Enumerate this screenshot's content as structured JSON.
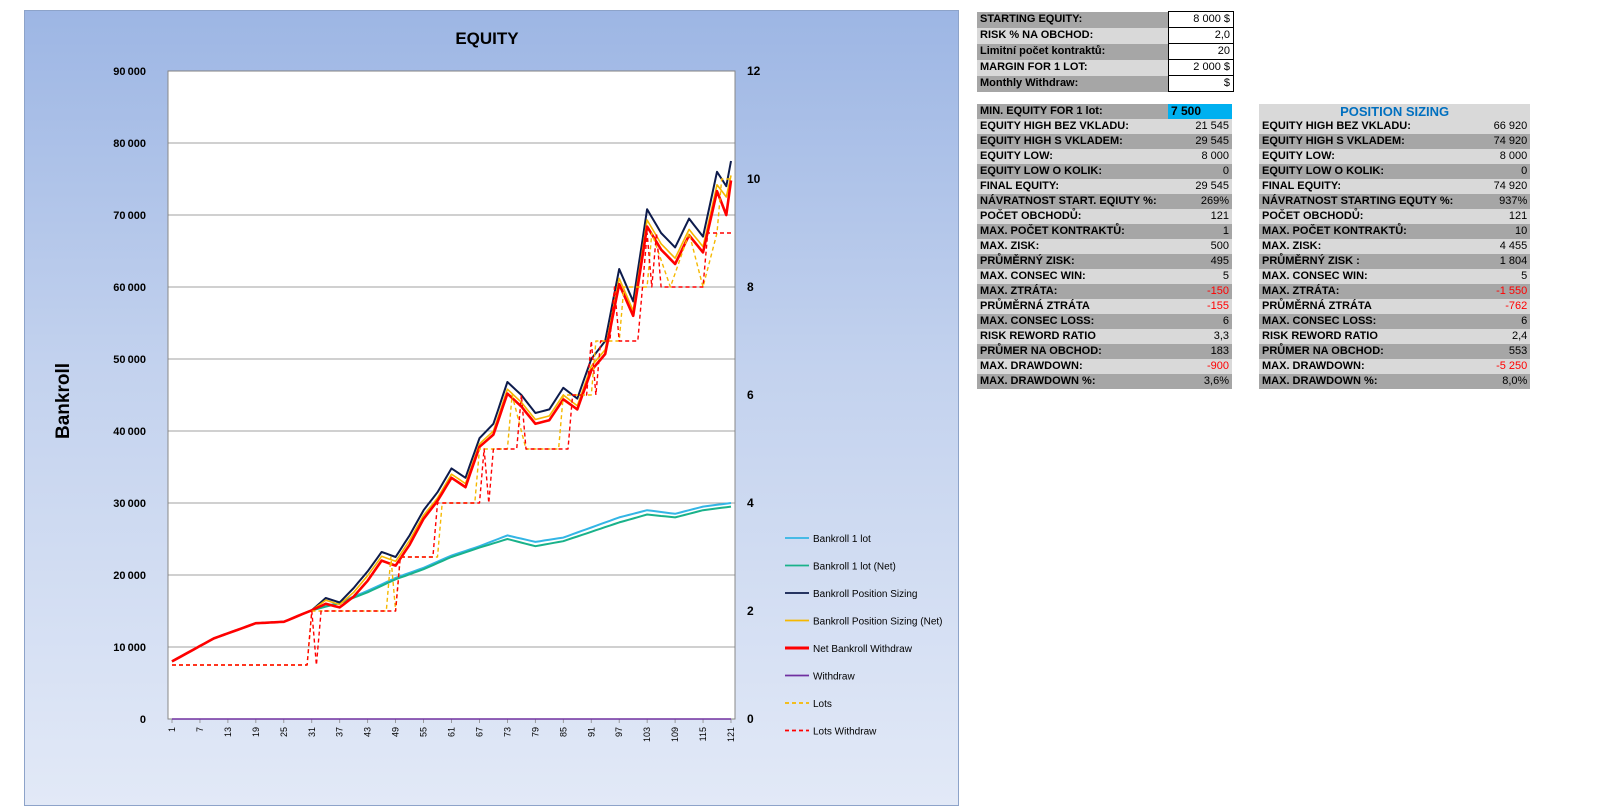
{
  "chart_data": {
    "type": "line",
    "title": "EQUITY",
    "ylabel": "Bankroll",
    "ylim": [
      0,
      90000
    ],
    "y2lim": [
      0,
      12
    ],
    "yticks": [
      "0",
      "10000",
      "20000",
      "30000",
      "40000",
      "50000",
      "60000",
      "70000",
      "80000",
      "90000"
    ],
    "y2ticks": [
      "0",
      "2",
      "4",
      "6",
      "8",
      "10",
      "12"
    ],
    "xticks": [
      "1",
      "7",
      "13",
      "19",
      "25",
      "31",
      "37",
      "43",
      "49",
      "55",
      "61",
      "67",
      "73",
      "79",
      "85",
      "91",
      "97",
      "103",
      "109",
      "115",
      "121"
    ],
    "n_points": 121,
    "grid": true,
    "legend_position": "right",
    "series": [
      {
        "name": "Bankroll 1 lot",
        "color": "#33b5e5",
        "dash": false,
        "axis": "left",
        "keypoints": [
          [
            1,
            8000
          ],
          [
            10,
            11200
          ],
          [
            19,
            13300
          ],
          [
            25,
            13500
          ],
          [
            31,
            15100
          ],
          [
            37,
            16200
          ],
          [
            43,
            17800
          ],
          [
            49,
            19600
          ],
          [
            55,
            21000
          ],
          [
            61,
            22700
          ],
          [
            67,
            24000
          ],
          [
            73,
            25500
          ],
          [
            79,
            24600
          ],
          [
            85,
            25200
          ],
          [
            91,
            26600
          ],
          [
            97,
            28000
          ],
          [
            103,
            29000
          ],
          [
            109,
            28500
          ],
          [
            115,
            29500
          ],
          [
            121,
            30000
          ]
        ]
      },
      {
        "name": "Bankroll 1 lot (Net)",
        "color": "#19b28a",
        "dash": false,
        "axis": "left",
        "keypoints": [
          [
            1,
            8000
          ],
          [
            10,
            11200
          ],
          [
            19,
            13300
          ],
          [
            25,
            13500
          ],
          [
            31,
            15100
          ],
          [
            37,
            16100
          ],
          [
            43,
            17600
          ],
          [
            49,
            19400
          ],
          [
            55,
            20800
          ],
          [
            61,
            22500
          ],
          [
            67,
            23800
          ],
          [
            73,
            25000
          ],
          [
            79,
            24000
          ],
          [
            85,
            24700
          ],
          [
            91,
            26000
          ],
          [
            97,
            27300
          ],
          [
            103,
            28400
          ],
          [
            109,
            28000
          ],
          [
            115,
            29000
          ],
          [
            121,
            29500
          ]
        ]
      },
      {
        "name": "Bankroll Position Sizing",
        "color": "#0d1b4c",
        "dash": false,
        "axis": "left",
        "keypoints": [
          [
            1,
            8000
          ],
          [
            10,
            11200
          ],
          [
            19,
            13300
          ],
          [
            25,
            13500
          ],
          [
            31,
            15100
          ],
          [
            34,
            16800
          ],
          [
            37,
            16200
          ],
          [
            40,
            18200
          ],
          [
            43,
            20500
          ],
          [
            46,
            23200
          ],
          [
            49,
            22500
          ],
          [
            52,
            25500
          ],
          [
            55,
            29000
          ],
          [
            58,
            31500
          ],
          [
            61,
            34800
          ],
          [
            64,
            33500
          ],
          [
            67,
            39000
          ],
          [
            70,
            41000
          ],
          [
            73,
            46800
          ],
          [
            76,
            45000
          ],
          [
            79,
            42500
          ],
          [
            82,
            43000
          ],
          [
            85,
            46000
          ],
          [
            88,
            44500
          ],
          [
            91,
            50000
          ],
          [
            94,
            52500
          ],
          [
            97,
            62500
          ],
          [
            100,
            58000
          ],
          [
            103,
            70800
          ],
          [
            106,
            67500
          ],
          [
            109,
            65500
          ],
          [
            112,
            69500
          ],
          [
            115,
            67000
          ],
          [
            118,
            76000
          ],
          [
            120,
            74000
          ],
          [
            121,
            77500
          ]
        ]
      },
      {
        "name": "Bankroll Position Sizing (Net)",
        "color": "#f5b800",
        "dash": false,
        "axis": "left",
        "keypoints": [
          [
            1,
            8000
          ],
          [
            10,
            11200
          ],
          [
            19,
            13300
          ],
          [
            25,
            13500
          ],
          [
            31,
            15100
          ],
          [
            34,
            16500
          ],
          [
            37,
            15900
          ],
          [
            40,
            17600
          ],
          [
            43,
            19900
          ],
          [
            46,
            22600
          ],
          [
            49,
            21900
          ],
          [
            52,
            24800
          ],
          [
            55,
            28300
          ],
          [
            58,
            30700
          ],
          [
            61,
            34000
          ],
          [
            64,
            32700
          ],
          [
            67,
            38200
          ],
          [
            70,
            40000
          ],
          [
            73,
            45800
          ],
          [
            76,
            44000
          ],
          [
            79,
            41600
          ],
          [
            82,
            42100
          ],
          [
            85,
            45000
          ],
          [
            88,
            43500
          ],
          [
            91,
            49000
          ],
          [
            94,
            51300
          ],
          [
            97,
            61200
          ],
          [
            100,
            56700
          ],
          [
            103,
            69300
          ],
          [
            106,
            66000
          ],
          [
            109,
            64000
          ],
          [
            112,
            68000
          ],
          [
            115,
            65600
          ],
          [
            118,
            74200
          ],
          [
            120,
            72500
          ],
          [
            121,
            75500
          ]
        ]
      },
      {
        "name": "Net Bankroll Withdraw",
        "color": "#ff0000",
        "dash": false,
        "axis": "left",
        "keypoints": [
          [
            1,
            8000
          ],
          [
            10,
            11200
          ],
          [
            19,
            13300
          ],
          [
            25,
            13500
          ],
          [
            31,
            15100
          ],
          [
            34,
            16000
          ],
          [
            37,
            15500
          ],
          [
            40,
            17000
          ],
          [
            43,
            19200
          ],
          [
            46,
            22000
          ],
          [
            49,
            21300
          ],
          [
            52,
            24200
          ],
          [
            55,
            27800
          ],
          [
            58,
            30300
          ],
          [
            61,
            33500
          ],
          [
            64,
            32200
          ],
          [
            67,
            37800
          ],
          [
            70,
            39500
          ],
          [
            73,
            45200
          ],
          [
            76,
            43400
          ],
          [
            79,
            41000
          ],
          [
            82,
            41500
          ],
          [
            85,
            44400
          ],
          [
            88,
            43000
          ],
          [
            91,
            48400
          ],
          [
            94,
            50700
          ],
          [
            97,
            60400
          ],
          [
            100,
            56000
          ],
          [
            103,
            68400
          ],
          [
            106,
            65200
          ],
          [
            109,
            63200
          ],
          [
            112,
            67200
          ],
          [
            115,
            64800
          ],
          [
            118,
            73300
          ],
          [
            120,
            70000
          ],
          [
            121,
            74800
          ]
        ]
      },
      {
        "name": "Withdraw",
        "color": "#7030a0",
        "dash": false,
        "axis": "left",
        "keypoints": [
          [
            1,
            0
          ],
          [
            121,
            0
          ]
        ]
      },
      {
        "name": "Lots",
        "color": "#f5b800",
        "dash": true,
        "axis": "right",
        "keypoints": [
          [
            1,
            1
          ],
          [
            30,
            1
          ],
          [
            31,
            2
          ],
          [
            47,
            2
          ],
          [
            48,
            3
          ],
          [
            49,
            2
          ],
          [
            50,
            3
          ],
          [
            58,
            3
          ],
          [
            59,
            4
          ],
          [
            66,
            4
          ],
          [
            67,
            5
          ],
          [
            73,
            5
          ],
          [
            74,
            6
          ],
          [
            77,
            5
          ],
          [
            84,
            5
          ],
          [
            85,
            6
          ],
          [
            91,
            6
          ],
          [
            92,
            7
          ],
          [
            97,
            7
          ],
          [
            98,
            8
          ],
          [
            103,
            8
          ],
          [
            104,
            9
          ],
          [
            108,
            8
          ],
          [
            112,
            9
          ],
          [
            115,
            8
          ],
          [
            118,
            9
          ],
          [
            119,
            10
          ],
          [
            121,
            10
          ]
        ]
      },
      {
        "name": "Lots Withdraw",
        "color": "#ff0000",
        "dash": true,
        "axis": "right",
        "keypoints": [
          [
            1,
            1
          ],
          [
            30,
            1
          ],
          [
            31,
            2
          ],
          [
            32,
            1
          ],
          [
            33,
            2
          ],
          [
            49,
            2
          ],
          [
            50,
            3
          ],
          [
            57,
            3
          ],
          [
            58,
            4
          ],
          [
            67,
            4
          ],
          [
            68,
            5
          ],
          [
            69,
            4
          ],
          [
            70,
            5
          ],
          [
            75,
            5
          ],
          [
            76,
            6
          ],
          [
            77,
            5
          ],
          [
            86,
            5
          ],
          [
            87,
            6
          ],
          [
            90,
            6
          ],
          [
            91,
            7
          ],
          [
            92,
            6
          ],
          [
            93,
            7
          ],
          [
            95,
            7
          ],
          [
            96,
            8
          ],
          [
            97,
            7
          ],
          [
            101,
            7
          ],
          [
            102,
            8
          ],
          [
            103,
            9
          ],
          [
            104,
            8
          ],
          [
            105,
            9
          ],
          [
            106,
            8
          ],
          [
            115,
            8
          ],
          [
            116,
            9
          ],
          [
            121,
            9
          ]
        ]
      }
    ]
  },
  "inputs": [
    {
      "label": "STARTING EQUITY:",
      "value": "8 000 $"
    },
    {
      "label": "RISK % NA OBCHOD:",
      "value": "2,0"
    },
    {
      "label": "Limitní počet kontraktů:",
      "value": "20"
    },
    {
      "label": "MARGIN FOR 1 LOT:",
      "value": "2 000 $"
    },
    {
      "label": "Monthly Withdraw:",
      "value": "$"
    }
  ],
  "stats_1lot": {
    "header": {
      "label": "MIN. EQUITY FOR 1 lot:",
      "value": "7 500"
    },
    "rows": [
      {
        "label": "EQUITY HIGH BEZ VKLADU:",
        "value": "21 545",
        "neg": false
      },
      {
        "label": "EQUITY HIGH S VKLADEM:",
        "value": "29 545",
        "neg": false
      },
      {
        "label": "EQUITY LOW:",
        "value": "8 000",
        "neg": false
      },
      {
        "label": "EQUITY LOW O KOLIK:",
        "value": "0",
        "neg": false
      },
      {
        "label": "FINAL EQUITY:",
        "value": "29 545",
        "neg": false
      },
      {
        "label": "NÁVRATNOST START. EQIUTY %:",
        "value": "269%",
        "neg": false
      },
      {
        "label": "POČET OBCHODŮ:",
        "value": "121",
        "neg": false
      },
      {
        "label": "MAX. POČET KONTRAKTŮ:",
        "value": "1",
        "neg": false
      },
      {
        "label": "MAX. ZISK:",
        "value": "500",
        "neg": false
      },
      {
        "label": "PRŮMĚRNÝ ZISK:",
        "value": "495",
        "neg": false
      },
      {
        "label": "MAX. CONSEC WIN:",
        "value": "5",
        "neg": false
      },
      {
        "label": "MAX. ZTRÁTA:",
        "value": "-150",
        "neg": true
      },
      {
        "label": "PRŮMĚRNÁ ZTRÁTA",
        "value": "-155",
        "neg": true
      },
      {
        "label": "MAX. CONSEC LOSS:",
        "value": "6",
        "neg": false
      },
      {
        "label": "RISK REWORD RATIO",
        "value": "3,3",
        "neg": false
      },
      {
        "label": "PRŮMER NA OBCHOD:",
        "value": "183",
        "neg": false
      },
      {
        "label": "MAX. DRAWDOWN:",
        "value": "-900",
        "neg": true
      },
      {
        "label": "MAX. DRAWDOWN %:",
        "value": "3,6%",
        "neg": false
      }
    ]
  },
  "stats_ps": {
    "title": "POSITION SIZING",
    "rows": [
      {
        "label": "EQUITY HIGH BEZ VKLADU:",
        "value": "66 920",
        "neg": false
      },
      {
        "label": "EQUITY HIGH S VKLADEM:",
        "value": "74 920",
        "neg": false
      },
      {
        "label": "EQUITY LOW:",
        "value": "8 000",
        "neg": false
      },
      {
        "label": "EQUITY LOW O KOLIK:",
        "value": "0",
        "neg": false
      },
      {
        "label": "FINAL EQUITY:",
        "value": "74 920",
        "neg": false
      },
      {
        "label": "NÁVRATNOST STARTING EQUTY %:",
        "value": "937%",
        "neg": false
      },
      {
        "label": "POČET OBCHODŮ:",
        "value": "121",
        "neg": false
      },
      {
        "label": "MAX. POČET KONTRAKTŮ:",
        "value": "10",
        "neg": false
      },
      {
        "label": "MAX. ZISK:",
        "value": "4 455",
        "neg": false
      },
      {
        "label": "PRŮMĚRNÝ ZISK :",
        "value": "1 804",
        "neg": false
      },
      {
        "label": "MAX. CONSEC WIN:",
        "value": "5",
        "neg": false
      },
      {
        "label": "MAX. ZTRÁTA:",
        "value": "-1 550",
        "neg": true
      },
      {
        "label": "PRŮMĚRNÁ ZTRÁTA",
        "value": "-762",
        "neg": true
      },
      {
        "label": "MAX. CONSEC LOSS:",
        "value": "6",
        "neg": false
      },
      {
        "label": "RISK REWORD RATIO",
        "value": "2,4",
        "neg": false
      },
      {
        "label": "PRŮMER NA OBCHOD:",
        "value": "553",
        "neg": false
      },
      {
        "label": "MAX. DRAWDOWN:",
        "value": "-5 250",
        "neg": true
      },
      {
        "label": "MAX. DRAWDOWN %:",
        "value": "8,0%",
        "neg": false
      }
    ]
  }
}
